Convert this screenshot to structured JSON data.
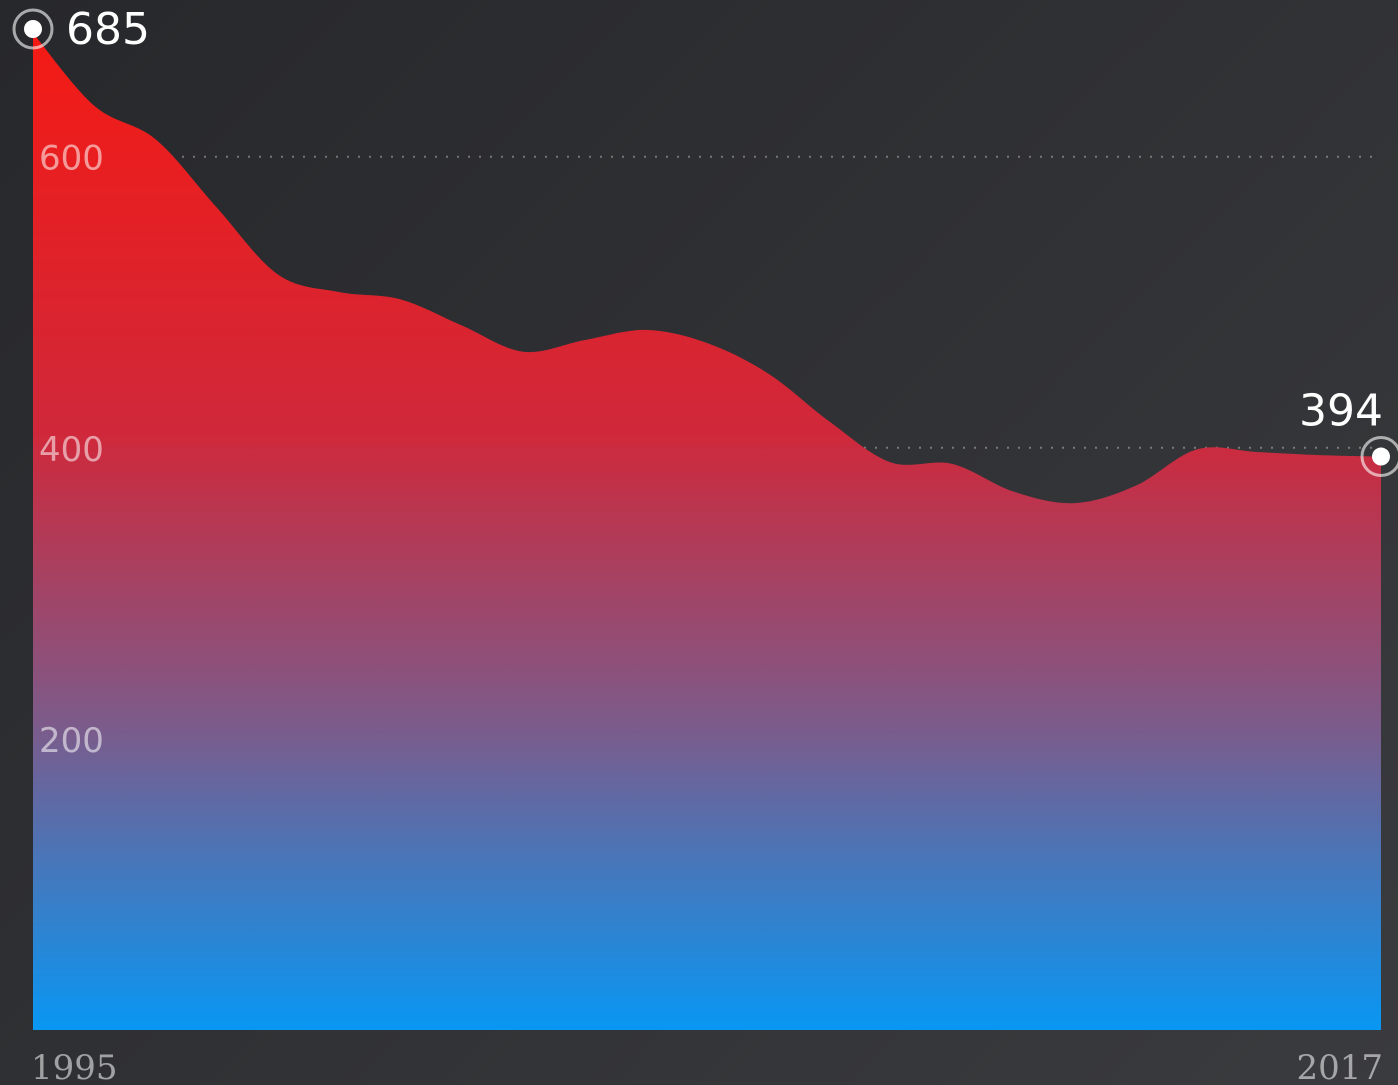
{
  "chart_data": {
    "type": "area",
    "x": [
      1995,
      1996,
      1997,
      1998,
      1999,
      2000,
      2001,
      2002,
      2003,
      2004,
      2005,
      2006,
      2007,
      2008,
      2009,
      2010,
      2011,
      2012,
      2013,
      2014,
      2015,
      2016,
      2017
    ],
    "values": [
      685,
      635,
      612,
      565,
      519,
      507,
      502,
      484,
      466,
      474,
      481,
      472,
      451,
      418,
      390,
      389,
      370,
      362,
      374,
      399,
      397,
      395,
      394
    ],
    "start_label": "685",
    "end_label": "394",
    "x_tick_labels": [
      "1995",
      "2017"
    ],
    "y_ticks": [
      200,
      400,
      600
    ],
    "ylim": [
      0,
      685
    ],
    "grid": "dotted horizontal",
    "colors": {
      "top": "#f41a14",
      "middle": "#7a5c8c",
      "bottom": "#0897f3",
      "marker": "#ffffff"
    }
  }
}
